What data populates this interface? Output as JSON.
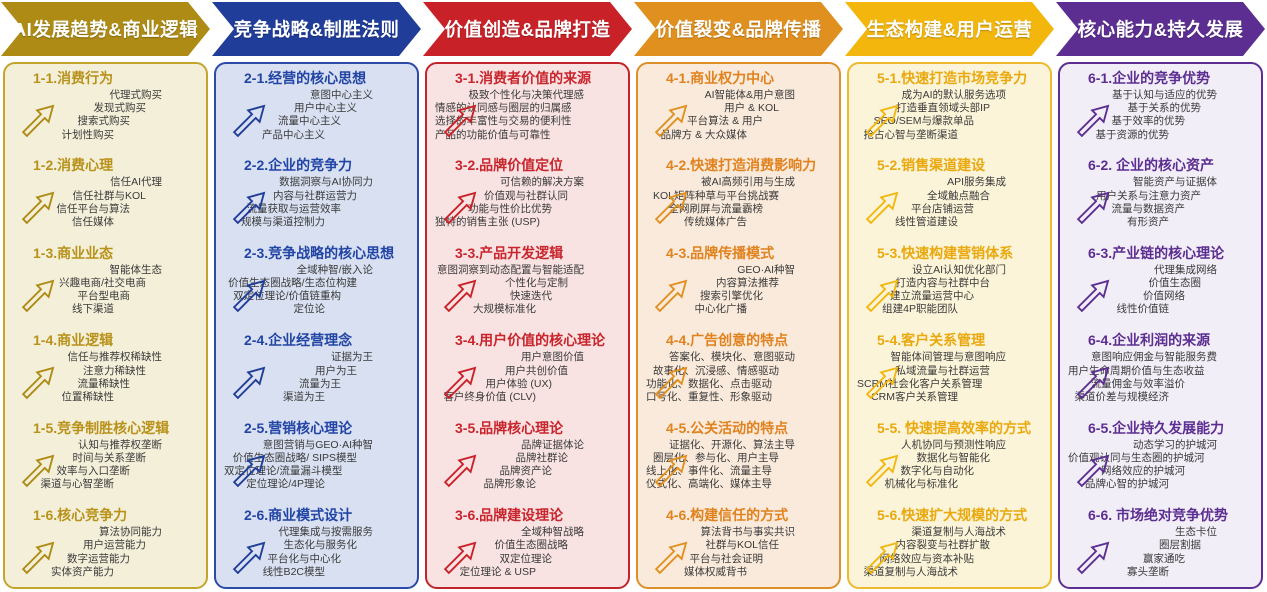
{
  "diagram": {
    "type": "six-column AI business strategy framework",
    "background": "#ffffff",
    "item_text_color": "#3a3a3a"
  },
  "columns": [
    {
      "header": "AI发展趋势&商业逻辑",
      "accent": "#AD8B14",
      "panel_bg": "#F4EFD9",
      "panel_border": "#C3A52E",
      "title_color": "#B8921A",
      "sections": [
        {
          "title": "1-1.消费行为",
          "items": [
            "代理式购买",
            "发现式购买",
            "搜索式购买",
            "计划性购买"
          ]
        },
        {
          "title": "1-2.消费心理",
          "items": [
            "信任AI代理",
            "信任社群与KOL",
            "信任平台与算法",
            "信任媒体"
          ]
        },
        {
          "title": "1-3.商业业态",
          "items": [
            "智能体生态",
            "兴趣电商/社交电商",
            "平台型电商",
            "线下渠道"
          ]
        },
        {
          "title": "1-4.商业逻辑",
          "items": [
            "信任与推荐权稀缺性",
            "注意力稀缺性",
            "流量稀缺性",
            "位置稀缺性"
          ]
        },
        {
          "title": "1-5.竞争制胜核心逻辑",
          "items": [
            "认知与推荐权垄断",
            "时间与关系垄断",
            "效率与入口垄断",
            "渠道与心智垄断"
          ]
        },
        {
          "title": "1-6.核心竞争力",
          "items": [
            "算法协同能力",
            "用户运营能力",
            "数字运营能力",
            "实体资产能力"
          ]
        }
      ]
    },
    {
      "header": "竞争战略&制胜法则",
      "accent": "#1F3D99",
      "panel_bg": "#D8E0F1",
      "panel_border": "#2C4BA6",
      "title_color": "#2245A5",
      "sections": [
        {
          "title": "2-1.经营的核心思想",
          "items": [
            "意图中心主义",
            "用户中心主义",
            "流量中心主义",
            "产品中心主义"
          ]
        },
        {
          "title": "2-2.企业的竞争力",
          "items": [
            "数据洞察与AI协同力",
            "内容与社群运营力",
            "流量获取与运营效率",
            "规模与渠道控制力"
          ]
        },
        {
          "title": "2-3.竞争战略的核心思想",
          "items": [
            "全域种智/嵌入论",
            "价值生态圈战略/生态位构建",
            "双定位理论/价值链重构",
            "定位论"
          ]
        },
        {
          "title": "2-4.企业经营理念",
          "items": [
            "证据为王",
            "用户为王",
            "流量为王",
            "渠道为王"
          ]
        },
        {
          "title": "2-5.营销核心理论",
          "items": [
            "意图营销与GEO·AI种智",
            "价值生态圈战略/ SIPS模型",
            "双定位理论/流量漏斗模型",
            "定位理论/4P理论"
          ]
        },
        {
          "title": "2-6.商业模式设计",
          "items": [
            "代理集成与按需服务",
            "生态化与服务化",
            "平台化与中心化",
            "线性B2C模型"
          ]
        }
      ]
    },
    {
      "header": "价值创造&品牌打造",
      "accent": "#C92128",
      "panel_bg": "#F8E2E2",
      "panel_border": "#C2242B",
      "title_color": "#C9252C",
      "sections": [
        {
          "title": "3-1.消费者价值的来源",
          "items": [
            "极致个性化与决策代理感",
            "情感的认同感与圈层的归属感",
            "选择的丰富性与交易的便利性",
            "产品的功能价值与可靠性"
          ]
        },
        {
          "title": "3-2.品牌价值定位",
          "items": [
            "可信赖的解决方案",
            "价值观与社群认同",
            "功能与性价比优势",
            "独特的销售主张 (USP)"
          ]
        },
        {
          "title": "3-3.产品开发逻辑",
          "items": [
            "意图洞察到动态配置与智能适配",
            "个性化与定制",
            "快速迭代",
            "大规模标准化"
          ]
        },
        {
          "title": "3-4.用户价值的核心理论",
          "items": [
            "用户意图价值",
            "用户共创价值",
            "用户体验 (UX)",
            "客户终身价值 (CLV)"
          ]
        },
        {
          "title": "3-5.品牌核心理论",
          "items": [
            "品牌证据体论",
            "品牌社群论",
            "品牌资产论",
            "品牌形象论"
          ]
        },
        {
          "title": "3-6.品牌建设理论",
          "items": [
            "全域种智战略",
            "价值生态圈战略",
            "双定位理论",
            "定位理论 & USP"
          ]
        }
      ]
    },
    {
      "header": "价值裂变&品牌传播",
      "accent": "#E0901F",
      "panel_bg": "#FAEADB",
      "panel_border": "#DD8F2A",
      "title_color": "#E0821E",
      "sections": [
        {
          "title": "4-1.商业权力中心",
          "items": [
            "AI智能体&用户意图",
            "用户 & KOL",
            "平台算法 & 用户",
            "品牌方 & 大众媒体"
          ]
        },
        {
          "title": "4-2.快速打造消费影响力",
          "items": [
            "被AI高频引用与生成",
            "KOL矩阵种草与平台挑战赛",
            "全网刷屏与流量霸榜",
            "传统媒体广告"
          ]
        },
        {
          "title": "4-3.品牌传播模式",
          "items": [
            "GEO·AI种智",
            "内容算法推荐",
            "搜索引擎优化",
            "中心化广播"
          ]
        },
        {
          "title": "4-4.广告创意的特点",
          "items": [
            "答案化、模块化、意图驱动",
            "故事化、沉浸感、情感驱动",
            "功能化、数据化、点击驱动",
            "口号化、重复性、形象驱动"
          ]
        },
        {
          "title": "4-5.公关活动的特点",
          "items": [
            "证据化、开源化、算法主导",
            "圈层化、参与化、用户主导",
            "线上化、事件化、流量主导",
            "仪式化、高端化、媒体主导"
          ]
        },
        {
          "title": "4-6.构建信任的方式",
          "items": [
            "算法背书与事实共识",
            "社群与KOL信任",
            "平台与社会证明",
            "媒体权威背书"
          ]
        }
      ]
    },
    {
      "header": "生态构建&用户运营",
      "accent": "#F2B60D",
      "panel_bg": "#FCF4D8",
      "panel_border": "#EDBA2D",
      "title_color": "#E9A90E",
      "sections": [
        {
          "title": "5-1.快速打造市场竞争力",
          "items": [
            "成为AI的默认服务选项",
            "打造垂直领域头部IP",
            "SEO/SEM与爆款单品",
            "抢占心智与垄断渠道"
          ]
        },
        {
          "title": "5-2.销售渠道建设",
          "items": [
            "API服务集成",
            "全域触点融合",
            "平台店铺运营",
            "线性管道建设"
          ]
        },
        {
          "title": "5-3.快速构建营销体系",
          "items": [
            "设立AI认知优化部门",
            "打造内容与社群中台",
            "建立流量运营中心",
            "组建4P职能团队"
          ]
        },
        {
          "title": "5-4.客户关系管理",
          "items": [
            "智能体间管理与意图响应",
            "私域流量与社群运营",
            "SCRM社会化客户关系管理",
            "CRM客户关系管理"
          ]
        },
        {
          "title": "5-5. 快速提高效率的方式",
          "items": [
            "人机协同与预测性响应",
            "数据化与智能化",
            "数字化与自动化",
            "机械化与标准化"
          ]
        },
        {
          "title": "5-6.快速扩大规模的方式",
          "items": [
            "渠道复制与人海战术",
            "内容裂变与社群扩散",
            "网络效应与资本补贴",
            "渠道复制与人海战术"
          ]
        }
      ]
    },
    {
      "header": "核心能力&持久发展",
      "accent": "#5C2E91",
      "panel_bg": "#F2EEF7",
      "panel_border": "#5C2E91",
      "title_color": "#5C2E91",
      "sections": [
        {
          "title": "6-1.企业的竞争优势",
          "items": [
            "基于认知与适应的优势",
            "基于关系的优势",
            "基于效率的优势",
            "基于资源的优势"
          ]
        },
        {
          "title": "6-2. 企业的核心资产",
          "items": [
            "智能资产与证据体",
            "用户关系与注意力资产",
            "流量与数据资产",
            "有形资产"
          ]
        },
        {
          "title": "6-3.产业链的核心理论",
          "items": [
            "代理集成网络",
            "价值生态圈",
            "价值网络",
            "线性价值链"
          ]
        },
        {
          "title": "6-4.企业利润的来源",
          "items": [
            "意图响应佣金与智能服务费",
            "用户生命周期价值与生态收益",
            "流量佣金与效率溢价",
            "渠道价差与规模经济"
          ]
        },
        {
          "title": "6-5.企业持久发展能力",
          "items": [
            "动态学习的护城河",
            "价值观认同与生态圈的护城河",
            "网络效应的护城河",
            "品牌心智的护城河"
          ]
        },
        {
          "title": "6-6. 市场绝对竞争优势",
          "items": [
            "生态卡位",
            "圈层割据",
            "赢家通吃",
            "寡头垄断"
          ]
        }
      ]
    }
  ]
}
